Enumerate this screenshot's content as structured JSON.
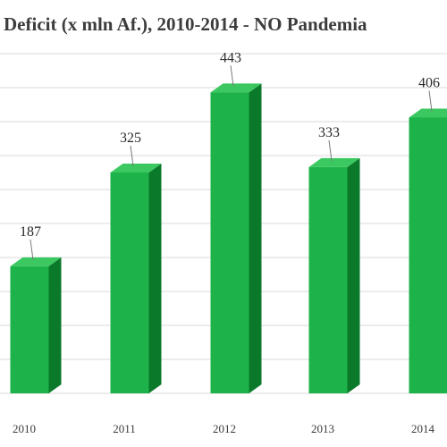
{
  "chart_data": {
    "type": "bar",
    "title": "Deficit (x mln Af.), 2010-2014 - NO Pandemia",
    "categories": [
      "2010",
      "2011",
      "2012",
      "2013",
      "2014"
    ],
    "values": [
      187,
      325,
      443,
      333,
      406
    ],
    "ylim": [
      0,
      500
    ],
    "grid": true,
    "bar_style": "3d-column",
    "colors": {
      "bar_front": "#1db34a",
      "bar_side": "#0a7a2a",
      "bar_top": "#3cc860",
      "grid": "#d9d9d9",
      "title": "#3c3c3c"
    }
  }
}
